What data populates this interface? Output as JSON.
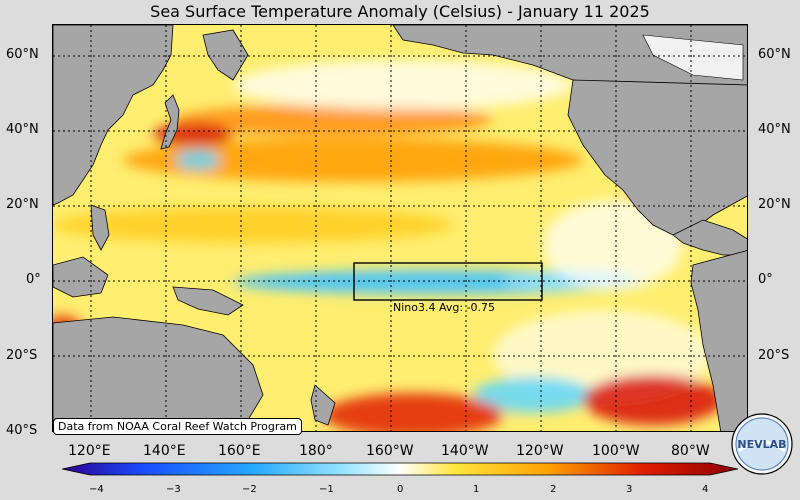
{
  "title": "Sea Surface Temperature Anomaly (Celsius) - January 11 2025",
  "map": {
    "latitude_labels": [
      "60°N",
      "40°N",
      "20°N",
      "0°",
      "20°S",
      "40°S"
    ],
    "longitude_labels": [
      "120°E",
      "140°E",
      "160°E",
      "180°",
      "160°W",
      "140°W",
      "120°W",
      "100°W",
      "80°W"
    ],
    "ocean_base_color": "#ffee70",
    "land_color": "#a6a6a6",
    "region_box": {
      "lon_range": [
        "170°W",
        "120°W"
      ],
      "lat_range": [
        "5°S",
        "5°N"
      ]
    },
    "nino_label": "Nino3.4 Avg: -0.75",
    "source_note": "Data from NOAA Coral Reef Watch Program"
  },
  "colorbar": {
    "ticks": [
      "−4",
      "−3",
      "−2",
      "−1",
      "0",
      "1",
      "2",
      "3",
      "4"
    ],
    "range": [
      -4,
      4
    ],
    "colors": [
      "#2a008c",
      "#1a4cff",
      "#25a8ff",
      "#9be6ff",
      "#ffffff",
      "#ffe640",
      "#ffa000",
      "#e01e00",
      "#8b0000"
    ]
  },
  "logo": {
    "text": "NEVLAB"
  }
}
